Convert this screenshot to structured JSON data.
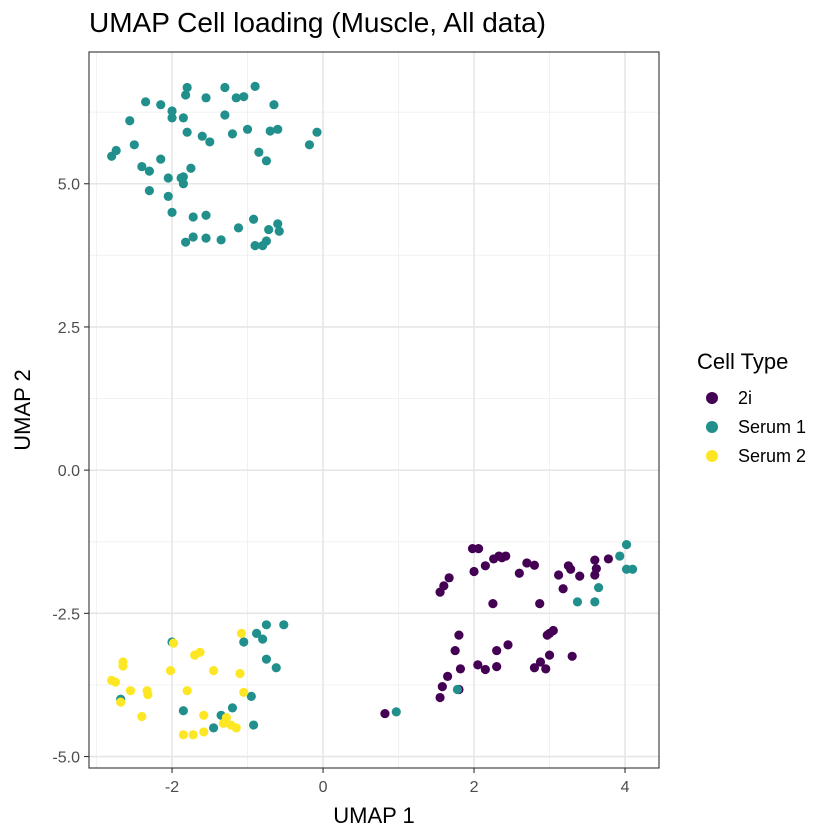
{
  "chart_data": {
    "type": "scatter",
    "title": "UMAP Cell loading (Muscle, All data)",
    "xlabel": "UMAP 1",
    "ylabel": "UMAP 2",
    "xlim": [
      -3.1,
      4.45
    ],
    "ylim": [
      -5.2,
      7.3
    ],
    "x_ticks": [
      -2,
      0,
      2,
      4
    ],
    "x_tick_labels": [
      "-2",
      "0",
      "2",
      "4"
    ],
    "y_ticks": [
      -5,
      -2.5,
      0,
      2.5,
      5
    ],
    "y_tick_labels": [
      "-5.0",
      "-2.5",
      "0.0",
      "2.5",
      "5.0"
    ],
    "grid": true,
    "legend": {
      "title": "Cell Type",
      "position": "right"
    },
    "series": [
      {
        "name": "2i",
        "color": "#440154",
        "points": [
          [
            0.82,
            -4.25
          ],
          [
            1.55,
            -3.97
          ],
          [
            1.58,
            -3.78
          ],
          [
            1.65,
            -3.6
          ],
          [
            1.8,
            -3.83
          ],
          [
            1.75,
            -3.15
          ],
          [
            1.8,
            -2.88
          ],
          [
            1.82,
            -3.47
          ],
          [
            2.05,
            -3.4
          ],
          [
            2.15,
            -3.48
          ],
          [
            2.3,
            -3.15
          ],
          [
            2.3,
            -3.43
          ],
          [
            2.45,
            -3.05
          ],
          [
            1.55,
            -2.13
          ],
          [
            1.6,
            -2.02
          ],
          [
            1.67,
            -1.88
          ],
          [
            1.98,
            -1.37
          ],
          [
            2.06,
            -1.37
          ],
          [
            2.0,
            -1.77
          ],
          [
            2.15,
            -1.67
          ],
          [
            2.26,
            -1.55
          ],
          [
            2.33,
            -1.5
          ],
          [
            2.37,
            -1.53
          ],
          [
            2.42,
            -1.5
          ],
          [
            2.6,
            -1.8
          ],
          [
            2.7,
            -1.62
          ],
          [
            2.8,
            -1.66
          ],
          [
            2.87,
            -2.33
          ],
          [
            2.25,
            -2.33
          ],
          [
            2.8,
            -3.45
          ],
          [
            2.88,
            -3.35
          ],
          [
            2.95,
            -3.47
          ],
          [
            2.97,
            -2.88
          ],
          [
            3.0,
            -2.85
          ],
          [
            3.05,
            -2.8
          ],
          [
            3.0,
            -3.23
          ],
          [
            3.3,
            -3.25
          ],
          [
            3.12,
            -1.83
          ],
          [
            3.25,
            -1.67
          ],
          [
            3.28,
            -1.73
          ],
          [
            3.4,
            -1.85
          ],
          [
            3.6,
            -1.57
          ],
          [
            3.6,
            -1.83
          ],
          [
            3.62,
            -1.72
          ],
          [
            3.78,
            -1.55
          ],
          [
            3.18,
            -2.07
          ]
        ]
      },
      {
        "name": "Serum 1",
        "color": "#21908C",
        "points": [
          [
            -2.8,
            5.48
          ],
          [
            -2.74,
            5.58
          ],
          [
            -2.56,
            6.1
          ],
          [
            -2.5,
            5.68
          ],
          [
            -2.35,
            6.43
          ],
          [
            -2.4,
            5.3
          ],
          [
            -2.3,
            5.22
          ],
          [
            -2.3,
            4.88
          ],
          [
            -2.15,
            6.38
          ],
          [
            -2.15,
            5.43
          ],
          [
            -2.05,
            5.1
          ],
          [
            -2.05,
            4.78
          ],
          [
            -2.0,
            6.27
          ],
          [
            -2.0,
            6.15
          ],
          [
            -2.0,
            4.5
          ],
          [
            -1.85,
            5.12
          ],
          [
            -1.88,
            5.1
          ],
          [
            -1.85,
            6.15
          ],
          [
            -1.82,
            6.55
          ],
          [
            -1.8,
            6.68
          ],
          [
            -1.8,
            5.9
          ],
          [
            -1.75,
            5.27
          ],
          [
            -1.85,
            5.0
          ],
          [
            -1.6,
            5.83
          ],
          [
            -1.55,
            6.5
          ],
          [
            -1.5,
            5.73
          ],
          [
            -1.3,
            6.68
          ],
          [
            -1.3,
            6.2
          ],
          [
            -1.2,
            5.87
          ],
          [
            -1.15,
            6.5
          ],
          [
            -1.05,
            6.52
          ],
          [
            -1.0,
            5.95
          ],
          [
            -0.9,
            6.7
          ],
          [
            -0.85,
            5.55
          ],
          [
            -0.75,
            5.4
          ],
          [
            -0.65,
            6.38
          ],
          [
            -0.7,
            5.92
          ],
          [
            -0.6,
            5.95
          ],
          [
            -0.18,
            5.68
          ],
          [
            -0.08,
            5.9
          ],
          [
            -1.82,
            3.98
          ],
          [
            -1.72,
            4.07
          ],
          [
            -1.72,
            4.42
          ],
          [
            -1.55,
            4.05
          ],
          [
            -1.55,
            4.45
          ],
          [
            -1.35,
            4.02
          ],
          [
            -1.12,
            4.23
          ],
          [
            -0.92,
            4.38
          ],
          [
            -0.9,
            3.92
          ],
          [
            -0.8,
            3.92
          ],
          [
            -0.75,
            4.0
          ],
          [
            -0.72,
            4.2
          ],
          [
            -0.6,
            4.3
          ],
          [
            -0.58,
            4.17
          ],
          [
            -2.0,
            -3.0
          ],
          [
            -1.85,
            -4.2
          ],
          [
            -1.45,
            -4.5
          ],
          [
            -1.35,
            -4.28
          ],
          [
            -1.2,
            -4.15
          ],
          [
            -1.05,
            -3.0
          ],
          [
            -0.95,
            -3.95
          ],
          [
            -0.92,
            -4.45
          ],
          [
            -0.88,
            -2.85
          ],
          [
            -0.8,
            -2.95
          ],
          [
            -0.75,
            -2.7
          ],
          [
            -0.75,
            -3.3
          ],
          [
            -0.62,
            -3.45
          ],
          [
            -0.52,
            -2.7
          ],
          [
            -2.68,
            -4.0
          ],
          [
            0.97,
            -4.22
          ],
          [
            1.78,
            -3.83
          ],
          [
            3.37,
            -2.3
          ],
          [
            3.6,
            -2.3
          ],
          [
            3.65,
            -2.05
          ],
          [
            3.93,
            -1.5
          ],
          [
            4.02,
            -1.3
          ],
          [
            4.02,
            -1.73
          ],
          [
            4.1,
            -1.73
          ]
        ]
      },
      {
        "name": "Serum 2",
        "color": "#FDE725",
        "points": [
          [
            -2.8,
            -3.67
          ],
          [
            -2.75,
            -3.7
          ],
          [
            -2.65,
            -3.42
          ],
          [
            -2.65,
            -3.35
          ],
          [
            -2.68,
            -4.05
          ],
          [
            -2.55,
            -3.85
          ],
          [
            -2.4,
            -4.3
          ],
          [
            -2.33,
            -3.85
          ],
          [
            -2.32,
            -3.92
          ],
          [
            -2.02,
            -3.5
          ],
          [
            -1.98,
            -3.02
          ],
          [
            -1.85,
            -4.62
          ],
          [
            -1.8,
            -3.85
          ],
          [
            -1.72,
            -4.62
          ],
          [
            -1.7,
            -3.23
          ],
          [
            -1.63,
            -3.18
          ],
          [
            -1.58,
            -4.28
          ],
          [
            -1.58,
            -4.57
          ],
          [
            -1.45,
            -3.5
          ],
          [
            -1.32,
            -4.42
          ],
          [
            -1.28,
            -4.32
          ],
          [
            -1.22,
            -4.45
          ],
          [
            -1.15,
            -4.5
          ],
          [
            -1.1,
            -3.55
          ],
          [
            -1.08,
            -2.85
          ],
          [
            -1.05,
            -3.88
          ]
        ]
      }
    ]
  }
}
